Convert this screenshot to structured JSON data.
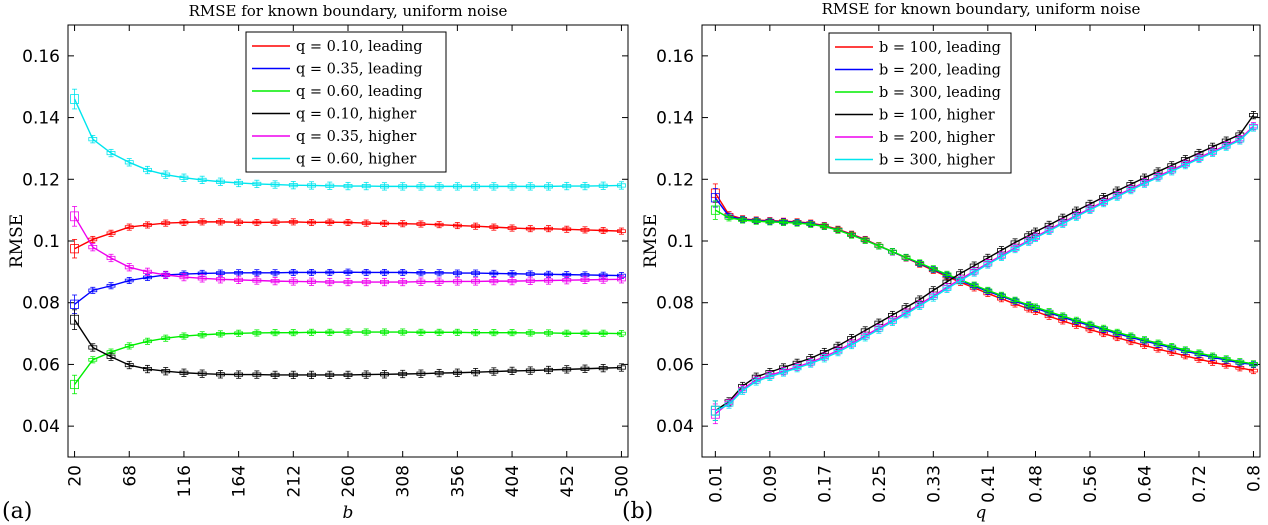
{
  "chart_data": [
    {
      "type": "line",
      "panel_label": "(a)",
      "title": "RMSE for known boundary, uniform noise",
      "xlabel": "b",
      "ylabel": "RMSE",
      "x": [
        20,
        36,
        52,
        68,
        84,
        100,
        116,
        132,
        148,
        164,
        180,
        196,
        212,
        228,
        244,
        260,
        276,
        292,
        308,
        324,
        340,
        356,
        372,
        388,
        404,
        420,
        436,
        452,
        468,
        484,
        500
      ],
      "xtick_labels": [
        "20",
        "68",
        "116",
        "164",
        "212",
        "260",
        "308",
        "356",
        "404",
        "452",
        "500"
      ],
      "ylim": [
        0.03,
        0.17
      ],
      "ytick_labels": [
        "0.04",
        "0.06",
        "0.08",
        "0.1",
        "0.12",
        "0.14",
        "0.16"
      ],
      "legend_position": "top-center",
      "series": [
        {
          "name": "q = 0.10, leading",
          "color": "#ff0000",
          "values": [
            0.0975,
            0.1005,
            0.1025,
            0.1045,
            0.1052,
            0.1058,
            0.106,
            0.1062,
            0.1062,
            0.1061,
            0.106,
            0.1061,
            0.1062,
            0.106,
            0.1061,
            0.106,
            0.1058,
            0.1057,
            0.1056,
            0.1055,
            0.1053,
            0.105,
            0.1048,
            0.1045,
            0.1042,
            0.104,
            0.104,
            0.1038,
            0.1036,
            0.1034,
            0.1032
          ]
        },
        {
          "name": "q = 0.35, leading",
          "color": "#0000ff",
          "values": [
            0.0795,
            0.084,
            0.0855,
            0.0872,
            0.0882,
            0.089,
            0.0893,
            0.0895,
            0.0896,
            0.0897,
            0.0897,
            0.0897,
            0.0898,
            0.0898,
            0.0898,
            0.0899,
            0.0898,
            0.0898,
            0.0898,
            0.0897,
            0.0897,
            0.0896,
            0.0896,
            0.0895,
            0.0894,
            0.0893,
            0.0892,
            0.0891,
            0.089,
            0.0889,
            0.0888
          ]
        },
        {
          "name": "q = 0.60, leading",
          "color": "#00ee00",
          "values": [
            0.0535,
            0.0615,
            0.064,
            0.066,
            0.0675,
            0.0685,
            0.0692,
            0.0696,
            0.0699,
            0.0701,
            0.0702,
            0.0703,
            0.0703,
            0.0704,
            0.0704,
            0.0705,
            0.0705,
            0.0705,
            0.0705,
            0.0704,
            0.0704,
            0.0704,
            0.0703,
            0.0703,
            0.0703,
            0.0702,
            0.0702,
            0.0701,
            0.0701,
            0.0701,
            0.07
          ]
        },
        {
          "name": "q = 0.10, higher",
          "color": "#000000",
          "values": [
            0.0745,
            0.0655,
            0.0625,
            0.0598,
            0.0585,
            0.0578,
            0.0573,
            0.057,
            0.0568,
            0.0567,
            0.0567,
            0.0566,
            0.0566,
            0.0566,
            0.0566,
            0.0566,
            0.0567,
            0.0568,
            0.0569,
            0.057,
            0.0572,
            0.0573,
            0.0575,
            0.0577,
            0.0579,
            0.058,
            0.0582,
            0.0584,
            0.0586,
            0.0588,
            0.059
          ]
        },
        {
          "name": "q = 0.35, higher",
          "color": "#ee00ee",
          "values": [
            0.108,
            0.098,
            0.0945,
            0.0915,
            0.09,
            0.089,
            0.0883,
            0.0879,
            0.0876,
            0.0874,
            0.0872,
            0.087,
            0.0869,
            0.0868,
            0.0867,
            0.0867,
            0.0867,
            0.0867,
            0.0867,
            0.0868,
            0.0868,
            0.0869,
            0.0869,
            0.087,
            0.087,
            0.0871,
            0.0872,
            0.0873,
            0.0874,
            0.0875,
            0.0876
          ]
        },
        {
          "name": "q = 0.60, higher",
          "color": "#00e5ee",
          "values": [
            0.146,
            0.133,
            0.1285,
            0.1255,
            0.123,
            0.1215,
            0.1205,
            0.1198,
            0.1192,
            0.1188,
            0.1185,
            0.1183,
            0.1181,
            0.118,
            0.1179,
            0.1178,
            0.1178,
            0.1177,
            0.1177,
            0.1177,
            0.1177,
            0.1177,
            0.1177,
            0.1177,
            0.1177,
            0.1177,
            0.1177,
            0.1178,
            0.1178,
            0.1179,
            0.118
          ]
        }
      ]
    },
    {
      "type": "line",
      "panel_label": "(b)",
      "title": "RMSE for known boundary, uniform noise",
      "xlabel": "q",
      "ylabel": "RMSE",
      "x": [
        0.01,
        0.03,
        0.05,
        0.07,
        0.09,
        0.11,
        0.13,
        0.15,
        0.17,
        0.19,
        0.21,
        0.23,
        0.25,
        0.27,
        0.29,
        0.31,
        0.33,
        0.35,
        0.37,
        0.39,
        0.41,
        0.43,
        0.45,
        0.47,
        0.48,
        0.5,
        0.52,
        0.54,
        0.56,
        0.58,
        0.6,
        0.62,
        0.64,
        0.66,
        0.68,
        0.7,
        0.72,
        0.74,
        0.76,
        0.78,
        0.8
      ],
      "xtick_labels": [
        "0.01",
        "0.09",
        "0.17",
        "0.25",
        "0.33",
        "0.41",
        "0.48",
        "0.56",
        "0.64",
        "0.72",
        "0.8"
      ],
      "ylim": [
        0.03,
        0.17
      ],
      "ytick_labels": [
        "0.04",
        "0.06",
        "0.08",
        "0.1",
        "0.12",
        "0.14",
        "0.16"
      ],
      "legend_position": "top-left",
      "series": [
        {
          "name": "b = 100, leading",
          "color": "#ff0000",
          "values": [
            0.1155,
            0.1085,
            0.1072,
            0.1068,
            0.1066,
            0.1064,
            0.1062,
            0.1058,
            0.105,
            0.1038,
            0.1022,
            0.1005,
            0.0985,
            0.0965,
            0.0945,
            0.0925,
            0.0905,
            0.0885,
            0.0866,
            0.0848,
            0.083,
            0.0813,
            0.0796,
            0.078,
            0.0772,
            0.0756,
            0.0741,
            0.0727,
            0.0713,
            0.07,
            0.0687,
            0.0674,
            0.0662,
            0.065,
            0.0639,
            0.0628,
            0.0617,
            0.0607,
            0.0598,
            0.0589,
            0.058
          ]
        },
        {
          "name": "b = 200, leading",
          "color": "#0000ff",
          "values": [
            0.114,
            0.108,
            0.107,
            0.1066,
            0.1064,
            0.1062,
            0.106,
            0.1056,
            0.1048,
            0.1036,
            0.102,
            0.1003,
            0.0984,
            0.0965,
            0.0946,
            0.0927,
            0.0908,
            0.0889,
            0.0871,
            0.0854,
            0.0837,
            0.0821,
            0.0805,
            0.079,
            0.0782,
            0.0767,
            0.0753,
            0.0739,
            0.0726,
            0.0713,
            0.07,
            0.0688,
            0.0676,
            0.0665,
            0.0654,
            0.0643,
            0.0633,
            0.0623,
            0.0614,
            0.0605,
            0.06
          ]
        },
        {
          "name": "b = 300, leading",
          "color": "#00ee00",
          "values": [
            0.11,
            0.1075,
            0.1068,
            0.1064,
            0.1062,
            0.106,
            0.1058,
            0.1054,
            0.1047,
            0.1035,
            0.1019,
            0.1002,
            0.0984,
            0.0966,
            0.0947,
            0.0929,
            0.091,
            0.0892,
            0.0874,
            0.0857,
            0.084,
            0.0824,
            0.0808,
            0.0793,
            0.0786,
            0.0771,
            0.0757,
            0.0743,
            0.073,
            0.0717,
            0.0704,
            0.0692,
            0.068,
            0.0669,
            0.0658,
            0.0647,
            0.0637,
            0.0627,
            0.0618,
            0.0609,
            0.0602
          ]
        },
        {
          "name": "b = 100, higher",
          "color": "#000000",
          "values": [
            0.045,
            0.048,
            0.053,
            0.056,
            0.0575,
            0.059,
            0.0605,
            0.062,
            0.064,
            0.066,
            0.0685,
            0.071,
            0.0735,
            0.076,
            0.0785,
            0.081,
            0.084,
            0.0868,
            0.0895,
            0.092,
            0.0945,
            0.097,
            0.0995,
            0.1018,
            0.103,
            0.1052,
            0.1075,
            0.1098,
            0.112,
            0.1142,
            0.1163,
            0.1184,
            0.1205,
            0.1225,
            0.1245,
            0.1265,
            0.1285,
            0.1305,
            0.1325,
            0.1345,
            0.1408
          ]
        },
        {
          "name": "b = 200, higher",
          "color": "#ee00ee",
          "values": [
            0.044,
            0.0475,
            0.052,
            0.055,
            0.0565,
            0.0578,
            0.0592,
            0.0607,
            0.0625,
            0.0645,
            0.0668,
            0.0693,
            0.0718,
            0.0743,
            0.0768,
            0.0795,
            0.0822,
            0.085,
            0.0877,
            0.0902,
            0.0928,
            0.0953,
            0.0978,
            0.1002,
            0.1014,
            0.1037,
            0.106,
            0.1083,
            0.1105,
            0.1127,
            0.1148,
            0.1169,
            0.119,
            0.121,
            0.123,
            0.125,
            0.127,
            0.129,
            0.131,
            0.133,
            0.1372
          ]
        },
        {
          "name": "b = 300, higher",
          "color": "#00e5ee",
          "values": [
            0.045,
            0.047,
            0.0515,
            0.0545,
            0.056,
            0.0574,
            0.0588,
            0.0603,
            0.062,
            0.064,
            0.0663,
            0.0688,
            0.0713,
            0.0738,
            0.0763,
            0.079,
            0.0817,
            0.0845,
            0.0872,
            0.0898,
            0.0924,
            0.0949,
            0.0974,
            0.0998,
            0.101,
            0.1033,
            0.1056,
            0.1079,
            0.1101,
            0.1123,
            0.1144,
            0.1165,
            0.1186,
            0.1206,
            0.1226,
            0.1246,
            0.1266,
            0.1286,
            0.1306,
            0.1326,
            0.1368
          ]
        }
      ]
    }
  ]
}
